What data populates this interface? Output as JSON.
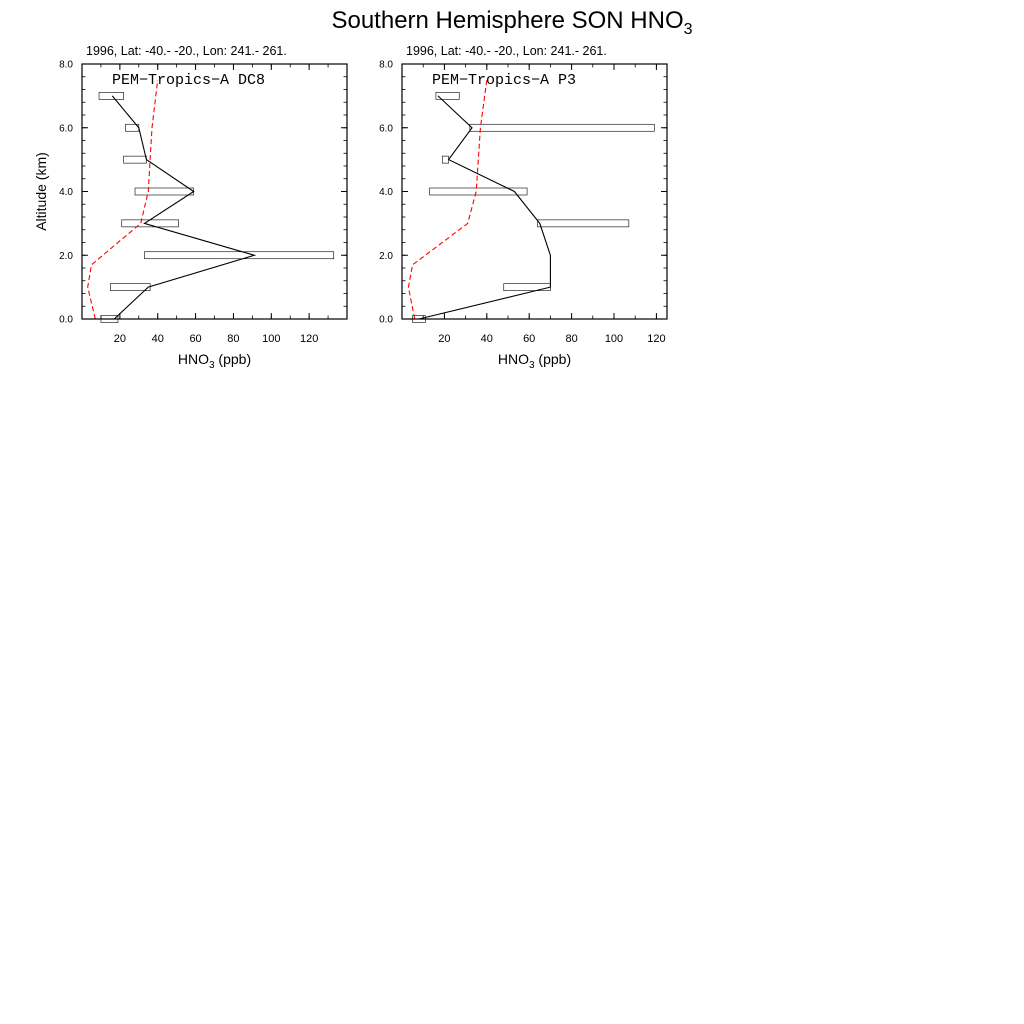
{
  "figure": {
    "title_main": "Southern Hemisphere SON HNO",
    "title_sub": "3"
  },
  "chart_data": [
    {
      "type": "line",
      "subtitle": "1996, Lat: -40.- -20., Lon: 241.- 261.",
      "inset_label": "PEM−Tropics−A DC8",
      "xlabel_main": "HNO",
      "xlabel_sub": "3",
      "xlabel_tail": " (ppb)",
      "ylabel": "Altitude (km)",
      "xlim": [
        0,
        140
      ],
      "ylim": [
        0,
        8
      ],
      "x_major_ticks": [
        20,
        40,
        60,
        80,
        100,
        120
      ],
      "x_tick_labels": [
        "20",
        "40",
        "60",
        "80",
        "100",
        "120"
      ],
      "x_minor_step": 10,
      "y_major_ticks": [
        0,
        2,
        4,
        6,
        8
      ],
      "y_tick_labels": [
        "0.0",
        "2.0",
        "4.0",
        "6.0",
        "8.0"
      ],
      "y_minor_step": 0.4,
      "series": [
        {
          "style": "solid",
          "color": "#000000",
          "points": [
            [
              17,
              0
            ],
            [
              35,
              1
            ],
            [
              91,
              2
            ],
            [
              33,
              3
            ],
            [
              59,
              4
            ],
            [
              34,
              5
            ],
            [
              30,
              6
            ],
            [
              16,
              7
            ]
          ]
        },
        {
          "style": "dashed",
          "color": "#ff0000",
          "points": [
            [
              7,
              0
            ],
            [
              3,
              1
            ],
            [
              5,
              1.7
            ],
            [
              31,
              3
            ],
            [
              35,
              4
            ],
            [
              36,
              5
            ],
            [
              37,
              6
            ],
            [
              40,
              7.5
            ]
          ]
        }
      ],
      "ranges": [
        {
          "y": 0,
          "x0": 10,
          "x1": 19
        },
        {
          "y": 1,
          "x0": 15,
          "x1": 36
        },
        {
          "y": 2,
          "x0": 33,
          "x1": 133
        },
        {
          "y": 3,
          "x0": 21,
          "x1": 51
        },
        {
          "y": 4,
          "x0": 28,
          "x1": 59
        },
        {
          "y": 5,
          "x0": 22,
          "x1": 34
        },
        {
          "y": 6,
          "x0": 23,
          "x1": 30
        },
        {
          "y": 7,
          "x0": 9,
          "x1": 22
        }
      ]
    },
    {
      "type": "line",
      "subtitle": "1996, Lat: -40.- -20., Lon: 241.- 261.",
      "inset_label": "PEM−Tropics−A P3",
      "xlabel_main": "HNO",
      "xlabel_sub": "3",
      "xlabel_tail": " (ppb)",
      "ylabel": "",
      "xlim": [
        0,
        125
      ],
      "ylim": [
        0,
        8
      ],
      "x_major_ticks": [
        20,
        40,
        60,
        80,
        100,
        120
      ],
      "x_tick_labels": [
        "20",
        "40",
        "60",
        "80",
        "100",
        "120"
      ],
      "x_minor_step": 10,
      "y_major_ticks": [
        0,
        2,
        4,
        6,
        8
      ],
      "y_tick_labels": [
        "0.0",
        "2.0",
        "4.0",
        "6.0",
        "8.0"
      ],
      "y_minor_step": 0.4,
      "series": [
        {
          "style": "solid",
          "color": "#000000",
          "points": [
            [
              8,
              0
            ],
            [
              70,
              1
            ],
            [
              70,
              2
            ],
            [
              65,
              3
            ],
            [
              53,
              4
            ],
            [
              22,
              5
            ],
            [
              33,
              6
            ],
            [
              17,
              7
            ]
          ]
        },
        {
          "style": "dashed",
          "color": "#ff0000",
          "points": [
            [
              6,
              0
            ],
            [
              3,
              1
            ],
            [
              5,
              1.7
            ],
            [
              31,
              3
            ],
            [
              35,
              4
            ],
            [
              36,
              5
            ],
            [
              37,
              6
            ],
            [
              40,
              7.5
            ]
          ]
        }
      ],
      "ranges": [
        {
          "y": 0,
          "x0": 5,
          "x1": 11
        },
        {
          "y": 1,
          "x0": 48,
          "x1": 70
        },
        {
          "y": 3,
          "x0": 64,
          "x1": 107
        },
        {
          "y": 4,
          "x0": 13,
          "x1": 59
        },
        {
          "y": 5,
          "x0": 19,
          "x1": 22
        },
        {
          "y": 6,
          "x0": 32,
          "x1": 119
        },
        {
          "y": 7,
          "x0": 16,
          "x1": 27
        }
      ]
    }
  ]
}
